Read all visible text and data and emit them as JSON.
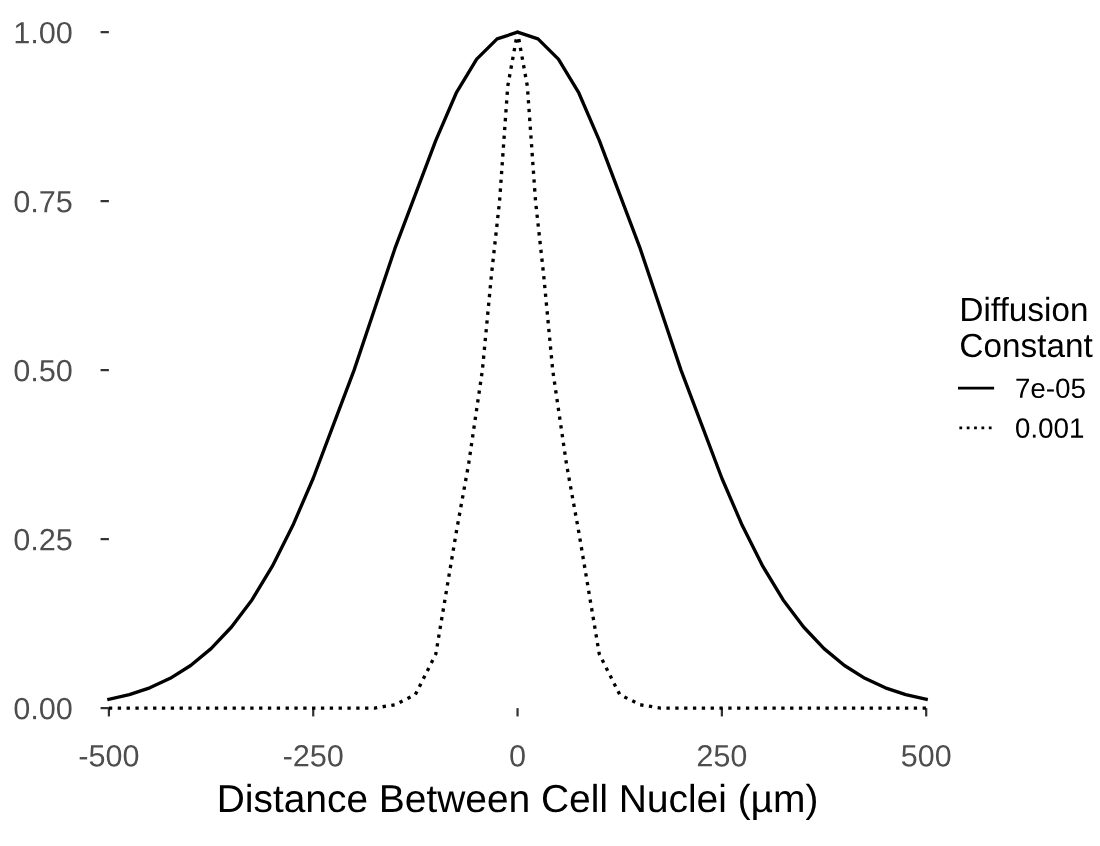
{
  "chart_data": {
    "type": "line",
    "xlabel": "Distance Between Cell Nuclei (µm)",
    "legend_title": "Diffusion\nConstant",
    "legend": "right",
    "grid": false,
    "xlim": [
      -500,
      500
    ],
    "ylim": [
      0,
      1
    ],
    "xticks": [
      -500,
      -250,
      0,
      250,
      500
    ],
    "yticks": [
      {
        "value": 0,
        "label": "0.00"
      },
      {
        "value": 0.25,
        "label": "0.25"
      },
      {
        "value": 0.5,
        "label": "0.50"
      },
      {
        "value": 0.75,
        "label": "0.75"
      },
      {
        "value": 1,
        "label": "1.00"
      }
    ],
    "series": [
      {
        "name": "7e-05",
        "color": "#000000",
        "line_style": "solid",
        "x": [
          -500,
          -475,
          -450,
          -425,
          -400,
          -375,
          -350,
          -325,
          -300,
          -275,
          -250,
          -225,
          -200,
          -175,
          -150,
          -125,
          -100,
          -75,
          -50,
          -25,
          0,
          25,
          50,
          75,
          100,
          125,
          150,
          175,
          200,
          225,
          250,
          275,
          300,
          325,
          350,
          375,
          400,
          425,
          450,
          475,
          500
        ],
        "values": [
          0.013,
          0.02,
          0.03,
          0.044,
          0.063,
          0.088,
          0.12,
          0.16,
          0.21,
          0.27,
          0.34,
          0.42,
          0.5,
          0.59,
          0.68,
          0.76,
          0.84,
          0.91,
          0.96,
          0.99,
          1,
          0.99,
          0.96,
          0.91,
          0.84,
          0.76,
          0.68,
          0.59,
          0.5,
          0.42,
          0.34,
          0.27,
          0.21,
          0.16,
          0.12,
          0.088,
          0.063,
          0.044,
          0.03,
          0.02,
          0.013
        ]
      },
      {
        "name": "0.001",
        "color": "#000000",
        "line_style": "dotted",
        "x": [
          -500,
          -175,
          -150,
          -125,
          -100,
          -75,
          -60,
          -43,
          -32,
          -22,
          -12,
          0,
          12,
          22,
          32,
          43,
          60,
          75,
          100,
          125,
          150,
          175,
          500
        ],
        "values": [
          0,
          0,
          0.005,
          0.02,
          0.08,
          0.26,
          0.36,
          0.5,
          0.64,
          0.75,
          0.92,
          1,
          0.92,
          0.75,
          0.64,
          0.5,
          0.36,
          0.26,
          0.08,
          0.02,
          0.005,
          0,
          0
        ]
      }
    ]
  }
}
